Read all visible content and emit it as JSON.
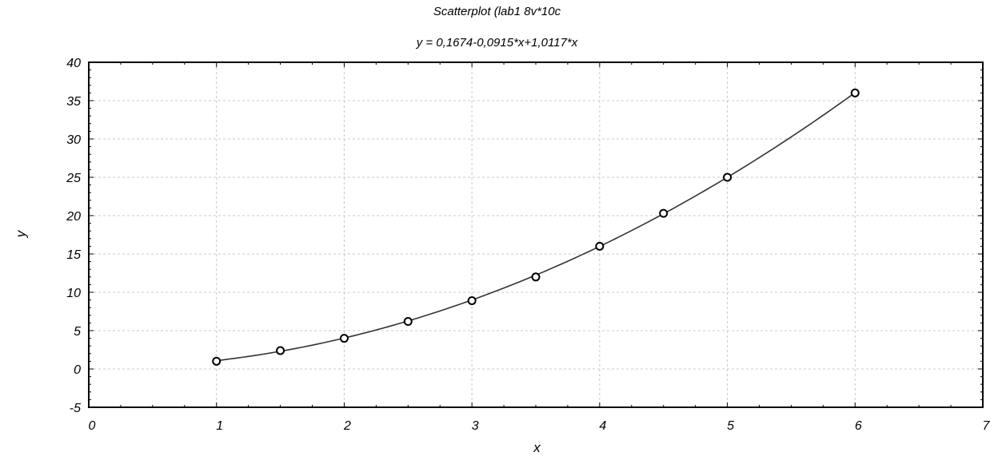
{
  "chart_data": {
    "type": "scatter",
    "title": "Scatterplot (lab1 8v*10c",
    "subtitle": "y = 0,1674-0,0915*x+1,0117*x",
    "xlabel": "x",
    "ylabel": "y",
    "xlim": [
      0,
      7
    ],
    "ylim": [
      -5,
      40
    ],
    "x_ticks": [
      0,
      1,
      2,
      3,
      4,
      5,
      6,
      7
    ],
    "y_ticks": [
      -5,
      0,
      5,
      10,
      15,
      20,
      25,
      30,
      35,
      40
    ],
    "grid": true,
    "series": [
      {
        "x": [
          1,
          1.5,
          2,
          2.5,
          3,
          3.5,
          4,
          4.5,
          5,
          6
        ],
        "y": [
          1.0,
          2.4,
          4.0,
          6.2,
          8.9,
          12.0,
          16.0,
          20.3,
          25.0,
          36.0
        ]
      }
    ],
    "fit": {
      "type": "quadratic",
      "coefficients": [
        0.1674,
        -0.0915,
        1.0117
      ],
      "x_range": [
        1,
        6
      ]
    }
  }
}
